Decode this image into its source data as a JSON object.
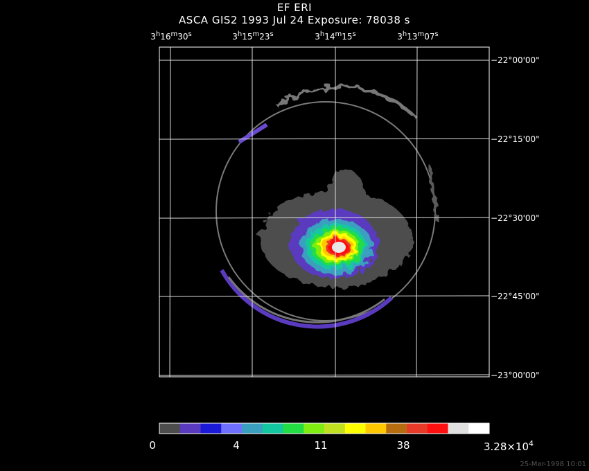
{
  "header": {
    "object": "EF ERI",
    "subtitle": "ASCA GIS2    1993 Jul 24     Exposure: 78038 s"
  },
  "ra_labels": [
    {
      "h": "3",
      "m": "16",
      "s": "30"
    },
    {
      "h": "3",
      "m": "15",
      "s": "23"
    },
    {
      "h": "3",
      "m": "14",
      "s": "15"
    },
    {
      "h": "3",
      "m": "13",
      "s": "07"
    }
  ],
  "dec_labels": [
    "−22°00'00\"",
    "−22°15'00\"",
    "−22°30'00\"",
    "−22°45'00\"",
    "−23°00'00\""
  ],
  "colorbar": {
    "colors": [
      "#4d4d4d",
      "#5a3bbf",
      "#1a1ad8",
      "#7070ff",
      "#3b9fbf",
      "#13c8a0",
      "#22dd44",
      "#7fee10",
      "#c0e020",
      "#ffff00",
      "#ffc800",
      "#b86c10",
      "#e83a28",
      "#ff1010",
      "#e0e0e0",
      "#ffffff"
    ],
    "labels": [
      "0",
      "4",
      "11",
      "38",
      "3.28×10"
    ],
    "exponent": "4"
  },
  "timestamp": "25-Mar-1998 10:01"
}
